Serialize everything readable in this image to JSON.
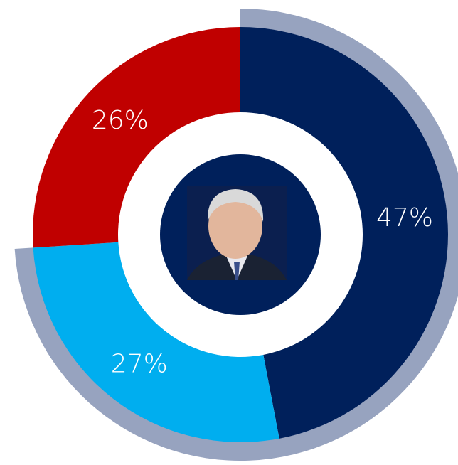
{
  "chart_data": {
    "type": "donut",
    "categories": [
      null,
      null,
      null
    ],
    "values": [
      47,
      27,
      26
    ],
    "value_labels": [
      "47%",
      "27%",
      "26%"
    ],
    "colors": [
      "#00205b",
      "#00aeef",
      "#c00000"
    ],
    "ring_color": "#97a3bf"
  }
}
